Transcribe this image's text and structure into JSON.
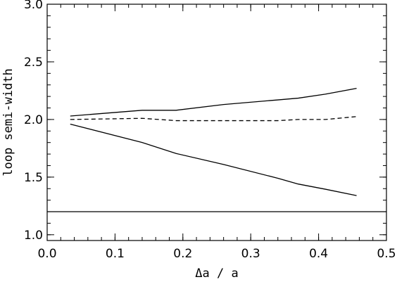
{
  "chart_data": {
    "type": "line",
    "title": "",
    "xlabel": "Δa / a",
    "ylabel": "loop semi-width",
    "xlim": [
      0.0,
      0.5
    ],
    "ylim": [
      0.95,
      3.0
    ],
    "x_ticks": [
      0.0,
      0.1,
      0.2,
      0.3,
      0.4,
      0.5
    ],
    "x_tick_labels": [
      "0.0",
      "0.1",
      "0.2",
      "0.3",
      "0.4",
      "0.5"
    ],
    "y_ticks": [
      1.0,
      1.5,
      2.0,
      2.5,
      3.0
    ],
    "y_tick_labels": [
      "1.0",
      "1.5",
      "2.0",
      "2.5",
      "3.0"
    ],
    "grid": false,
    "legend": "none",
    "series": [
      {
        "style": "solid",
        "x": [
          0.034,
          0.14,
          0.19,
          0.26,
          0.34,
          0.37,
          0.41,
          0.456
        ],
        "y": [
          2.03,
          2.08,
          2.08,
          2.13,
          2.17,
          2.185,
          2.22,
          2.27
        ]
      },
      {
        "style": "dashed",
        "x": [
          0.034,
          0.14,
          0.19,
          0.26,
          0.34,
          0.37,
          0.41,
          0.456
        ],
        "y": [
          2.0,
          2.01,
          1.99,
          1.99,
          1.99,
          2.0,
          2.0,
          2.025
        ]
      },
      {
        "style": "solid",
        "x": [
          0.034,
          0.14,
          0.19,
          0.26,
          0.34,
          0.37,
          0.41,
          0.456
        ],
        "y": [
          1.96,
          1.8,
          1.705,
          1.61,
          1.49,
          1.44,
          1.395,
          1.34
        ]
      },
      {
        "style": "solid",
        "x": [
          0.0,
          0.5
        ],
        "y": [
          1.2,
          1.2
        ]
      }
    ]
  }
}
